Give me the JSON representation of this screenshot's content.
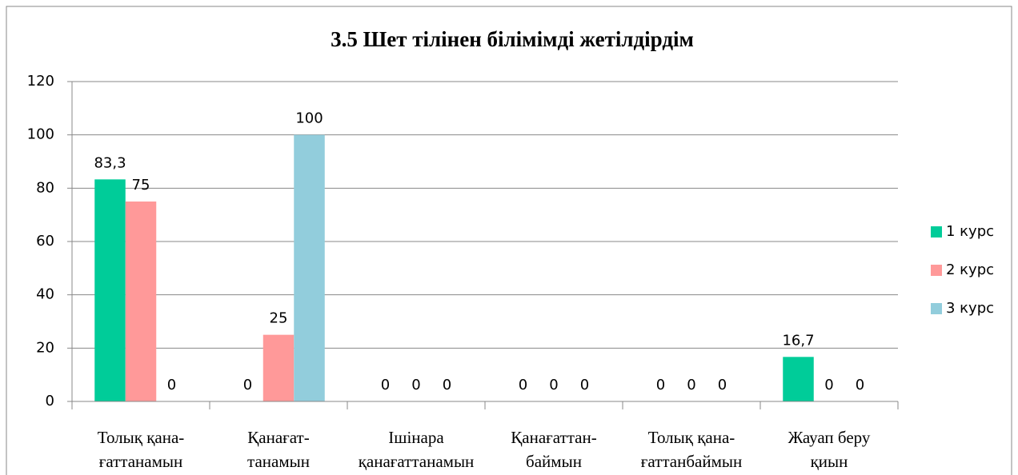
{
  "chart_data": {
    "type": "bar",
    "title": "3.5 Шет тілінен білімімді жетілдірдім",
    "categories": [
      "Толық қана-\nғаттанамын",
      "Қанағат-\nтанамын",
      "Ішінара\nқанағаттанамын",
      "Қанағаттан-\nбаймын",
      "Толық қана-\nғаттанбаймын",
      "Жауап беру\nқиын"
    ],
    "series": [
      {
        "name": "1 курс",
        "color": "#00cc99",
        "values": [
          83.3,
          0,
          0,
          0,
          0,
          16.7
        ],
        "value_labels": [
          "83,3",
          "0",
          "0",
          "0",
          "0",
          "16,7"
        ]
      },
      {
        "name": "2 курс",
        "color": "#ff9999",
        "values": [
          75,
          25,
          0,
          0,
          0,
          0
        ]
      },
      {
        "name": "3 курс",
        "color": "#92cddc",
        "values": [
          0,
          100,
          0,
          0,
          0,
          0
        ]
      }
    ],
    "ylim": [
      0,
      120
    ],
    "yticks": [
      0,
      20,
      40,
      60,
      80,
      100,
      120
    ],
    "grid": true,
    "legend": "right"
  }
}
